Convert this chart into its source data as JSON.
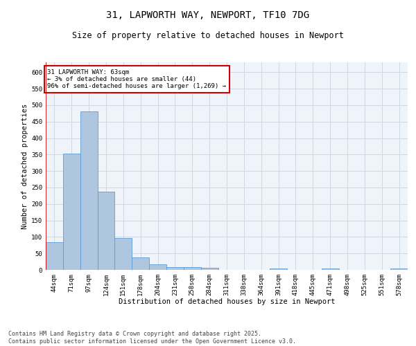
{
  "title": "31, LAPWORTH WAY, NEWPORT, TF10 7DG",
  "subtitle": "Size of property relative to detached houses in Newport",
  "xlabel": "Distribution of detached houses by size in Newport",
  "ylabel": "Number of detached properties",
  "categories": [
    "44sqm",
    "71sqm",
    "97sqm",
    "124sqm",
    "151sqm",
    "178sqm",
    "204sqm",
    "231sqm",
    "258sqm",
    "284sqm",
    "311sqm",
    "338sqm",
    "364sqm",
    "391sqm",
    "418sqm",
    "445sqm",
    "471sqm",
    "498sqm",
    "525sqm",
    "551sqm",
    "578sqm"
  ],
  "values": [
    85,
    352,
    480,
    237,
    96,
    37,
    16,
    8,
    8,
    6,
    0,
    0,
    0,
    4,
    0,
    0,
    5,
    0,
    0,
    0,
    5
  ],
  "bar_color": "#aec6e0",
  "bar_edge_color": "#5b9bd5",
  "bar_edge_width": 0.6,
  "highlight_bar_index": 0,
  "highlight_color": "#cc0000",
  "ylim": [
    0,
    630
  ],
  "yticks": [
    0,
    50,
    100,
    150,
    200,
    250,
    300,
    350,
    400,
    450,
    500,
    550,
    600
  ],
  "grid_color": "#c8d4e0",
  "background_color": "#eef4fa",
  "annotation_text": "31 LAPWORTH WAY: 63sqm\n← 3% of detached houses are smaller (44)\n96% of semi-detached houses are larger (1,269) →",
  "annotation_box_color": "#ffffff",
  "annotation_box_edge": "#cc0000",
  "footnote": "Contains HM Land Registry data © Crown copyright and database right 2025.\nContains public sector information licensed under the Open Government Licence v3.0.",
  "title_fontsize": 10,
  "subtitle_fontsize": 8.5,
  "label_fontsize": 7.5,
  "tick_fontsize": 6.5,
  "annot_fontsize": 6.5,
  "footnote_fontsize": 6
}
